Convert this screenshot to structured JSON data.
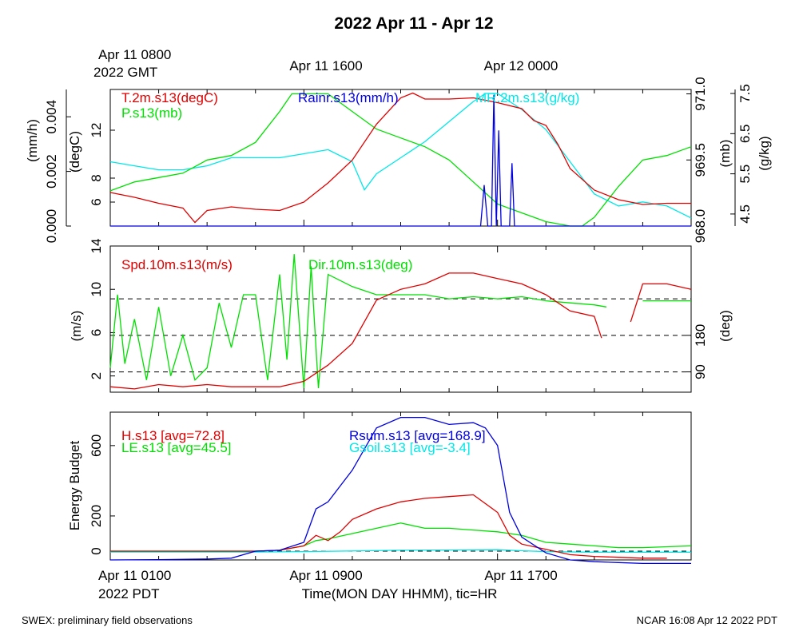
{
  "header": {
    "title": "2022 Apr 11 - Apr 12",
    "gmt_first_line": "Apr 11 0800",
    "gmt_second_line": "2022 GMT",
    "gmt_labels": [
      "Apr 11 1600",
      "Apr 12 0000"
    ]
  },
  "footer": {
    "left": "SWEX: preliminary field observations",
    "right": "NCAR 16:08 Apr 12 2022 PDT",
    "xlabel": "Time(MON DAY HHMM), tic=HR",
    "pdt_first_line": "Apr 11 0100",
    "pdt_second_line": "2022 PDT",
    "pdt_labels": [
      "Apr 11 0900",
      "Apr 11 1700"
    ]
  },
  "colors": {
    "red": "#e00000",
    "green": "#00e000",
    "blue": "#0000e0",
    "cyan": "#00e8e8"
  },
  "chart_data": [
    {
      "type": "line",
      "panel": "met",
      "x_unit": "hours since Apr 11 0100 PDT",
      "xlim": [
        0,
        24
      ],
      "axes": {
        "rain": {
          "label": "(mm/h)",
          "ylim": [
            0,
            0.005
          ],
          "ticks": [
            "0.000",
            "0.002",
            "0.004"
          ],
          "tick_values": [
            0,
            0.002,
            0.004
          ]
        },
        "temp": {
          "label": "(degC)",
          "ylim": [
            4,
            15.4
          ],
          "ticks": [
            "6",
            "8",
            "12"
          ],
          "tick_values": [
            6,
            8,
            12
          ]
        },
        "pres": {
          "label": "(mb)",
          "ylim": [
            968,
            971.1
          ],
          "ticks": [
            "968.0",
            "969.5",
            "971.0"
          ],
          "tick_values": [
            968,
            969.5,
            971
          ]
        },
        "mr": {
          "label": "(g/kg)",
          "ylim": [
            4.2,
            7.6
          ],
          "ticks": [
            "4.5",
            "5.5",
            "6.5",
            "7.5"
          ],
          "tick_values": [
            4.5,
            5.5,
            6.5,
            7.5
          ]
        }
      },
      "series": [
        {
          "name": "T.2m.s13(degC)",
          "axis": "temp",
          "color": "#e00000",
          "x": [
            0,
            1,
            2,
            3,
            3.5,
            4,
            5,
            6,
            7,
            8,
            9,
            10,
            11,
            12,
            12.5,
            13,
            14,
            15,
            16,
            17,
            17.5,
            18,
            18.5,
            19,
            20,
            21,
            22,
            23,
            24
          ],
          "values": [
            6.8,
            6.4,
            5.9,
            5.5,
            4.3,
            5.3,
            5.6,
            5.4,
            5.3,
            6.0,
            7.6,
            9.5,
            12.5,
            14.7,
            15.1,
            14.6,
            14.6,
            14.7,
            14.3,
            13.8,
            12.8,
            12.4,
            10.8,
            8.8,
            7.0,
            6.2,
            5.8,
            5.9,
            5.9
          ]
        },
        {
          "name": "P.s13(mb)",
          "axis": "pres",
          "color": "#00e000",
          "x": [
            0,
            1,
            2,
            3,
            4,
            5,
            6,
            7,
            7.5,
            8,
            9,
            10,
            11,
            12,
            13,
            14,
            15,
            16,
            17,
            18,
            19,
            19.5,
            20,
            21,
            22,
            23,
            24
          ],
          "values": [
            968.8,
            969.0,
            969.1,
            969.2,
            969.5,
            969.6,
            969.9,
            970.6,
            971.0,
            971.0,
            971.0,
            970.6,
            970.2,
            970.0,
            969.8,
            969.5,
            969.0,
            968.5,
            968.3,
            968.1,
            968.0,
            968.0,
            968.2,
            968.9,
            969.5,
            969.6,
            969.8
          ]
        },
        {
          "name": "MR.2m.s13(g/kg)",
          "axis": "mr",
          "color": "#00e8e8",
          "x": [
            0,
            1,
            2,
            3,
            4,
            5,
            6,
            7,
            8,
            9,
            10,
            10.5,
            11,
            12,
            13,
            14,
            15,
            15.5,
            16,
            17,
            18,
            19,
            20,
            21,
            22,
            23,
            24
          ],
          "values": [
            5.8,
            5.7,
            5.6,
            5.6,
            5.7,
            5.9,
            5.9,
            5.9,
            6.0,
            6.1,
            5.8,
            5.1,
            5.5,
            5.9,
            6.3,
            6.8,
            7.3,
            7.5,
            7.5,
            7.1,
            6.6,
            5.8,
            5.0,
            4.7,
            4.8,
            4.7,
            4.4
          ]
        },
        {
          "name": "Rainr.s13(mm/h)",
          "axis": "rain",
          "color": "#0000e0",
          "x": [
            0,
            12,
            15.3,
            15.45,
            15.6,
            15.75,
            15.85,
            15.95,
            16.05,
            16.15,
            16.5,
            16.6,
            16.7,
            24
          ],
          "values": [
            0,
            0,
            0,
            0.0015,
            0,
            0,
            0.0048,
            0,
            0.0035,
            0,
            0,
            0.0023,
            0,
            0
          ]
        }
      ]
    },
    {
      "type": "line",
      "panel": "wind",
      "x_unit": "hours since Apr 11 0100 PDT",
      "xlim": [
        0,
        24
      ],
      "axes": {
        "spd": {
          "label": "(m/s)",
          "ylim": [
            0.5,
            14
          ],
          "ticks": [
            "2",
            "6",
            "10",
            "14"
          ],
          "tick_values": [
            2,
            6,
            10,
            14
          ]
        },
        "dir": {
          "label": "(deg)",
          "ylim": [
            40,
            400
          ],
          "ticks": [
            "90",
            "180"
          ],
          "tick_values": [
            90,
            180
          ]
        }
      },
      "reference_lines_deg": [
        90,
        180,
        270
      ],
      "series": [
        {
          "name": "Spd.10m.s13(m/s)",
          "axis": "spd",
          "color": "#e00000",
          "x": [
            0,
            1,
            2,
            3,
            4,
            5,
            6,
            7,
            8,
            9,
            10,
            11,
            12,
            13,
            14,
            15,
            16,
            17,
            18,
            19,
            20,
            20.3,
            20.8,
            21.5,
            22,
            23,
            24
          ],
          "values": [
            1.0,
            0.8,
            1.2,
            1.0,
            1.2,
            1.0,
            1.0,
            1.0,
            1.5,
            3.0,
            5.0,
            9.0,
            10.0,
            10.5,
            11.5,
            11.5,
            11.0,
            10.5,
            9.5,
            8.0,
            7.5,
            5.5,
            null,
            7.0,
            10.5,
            10.5,
            10.0
          ]
        },
        {
          "name": "Dir.10m.s13(deg)",
          "axis": "dir",
          "color": "#00e000",
          "x": [
            0,
            0.3,
            0.6,
            1,
            1.5,
            2,
            2.5,
            3,
            3.5,
            4,
            4.5,
            5,
            5.5,
            6,
            6.5,
            7,
            7.3,
            7.6,
            8,
            8.3,
            8.6,
            9,
            10,
            11,
            12,
            13,
            14,
            15,
            16,
            17,
            18,
            19,
            20,
            20.5,
            21.5,
            22,
            23,
            24
          ],
          "values": [
            100,
            280,
            110,
            220,
            70,
            250,
            80,
            180,
            70,
            100,
            260,
            150,
            280,
            280,
            70,
            330,
            120,
            380,
            50,
            350,
            50,
            330,
            300,
            280,
            280,
            280,
            270,
            275,
            270,
            275,
            265,
            260,
            255,
            250,
            null,
            265,
            265,
            265
          ]
        }
      ]
    },
    {
      "type": "line",
      "panel": "energy",
      "x_unit": "hours since Apr 11 0100 PDT",
      "xlim": [
        0,
        24
      ],
      "ylabel": "Energy Budget",
      "ylim": [
        -50,
        790
      ],
      "yticks": [
        "0",
        "200",
        "600"
      ],
      "ytick_values": [
        0,
        200,
        600
      ],
      "reference_lines": [
        0
      ],
      "series": [
        {
          "name": "H.s13 [avg=72.8]",
          "color": "#e00000",
          "x": [
            0,
            4,
            6,
            7,
            8,
            8.5,
            9,
            9.5,
            10,
            11,
            12,
            13,
            14,
            15,
            16,
            16.5,
            17,
            18,
            19,
            20,
            21,
            22,
            23,
            24
          ],
          "values": [
            0,
            0,
            0,
            5,
            30,
            90,
            60,
            110,
            180,
            240,
            280,
            300,
            310,
            320,
            220,
            90,
            40,
            10,
            -20,
            -30,
            -35,
            -40,
            -40,
            null
          ]
        },
        {
          "name": "LE.s13 [avg=45.5]",
          "color": "#00e000",
          "x": [
            0,
            4,
            6,
            7,
            8,
            8.5,
            9,
            10,
            11,
            12,
            13,
            14,
            15,
            16,
            17,
            18,
            19,
            20,
            21,
            22,
            23,
            24
          ],
          "values": [
            0,
            0,
            0,
            5,
            30,
            60,
            70,
            100,
            130,
            160,
            130,
            130,
            120,
            110,
            90,
            50,
            40,
            30,
            20,
            20,
            25,
            30
          ]
        },
        {
          "name": "Rsum.s13 [avg=168.9]",
          "color": "#0000e0",
          "x": [
            0,
            2,
            4,
            5,
            6,
            7,
            8,
            8.5,
            9,
            10,
            11,
            12,
            13,
            14,
            15,
            15.5,
            16,
            16.5,
            17,
            18,
            19,
            20,
            21,
            22,
            23,
            24
          ],
          "values": [
            -50,
            -48,
            -45,
            -40,
            0,
            5,
            50,
            240,
            280,
            460,
            700,
            760,
            760,
            720,
            730,
            700,
            600,
            220,
            80,
            -10,
            -50,
            -60,
            -65,
            -70,
            -70,
            -70
          ]
        },
        {
          "name": "Gsoil.s13 [avg=-3.4]",
          "color": "#00e8e8",
          "x": [
            0,
            6,
            8,
            12,
            16,
            17,
            18,
            20,
            24
          ],
          "values": [
            -5,
            -5,
            -3,
            5,
            8,
            2,
            -3,
            -6,
            -6
          ]
        }
      ]
    }
  ]
}
